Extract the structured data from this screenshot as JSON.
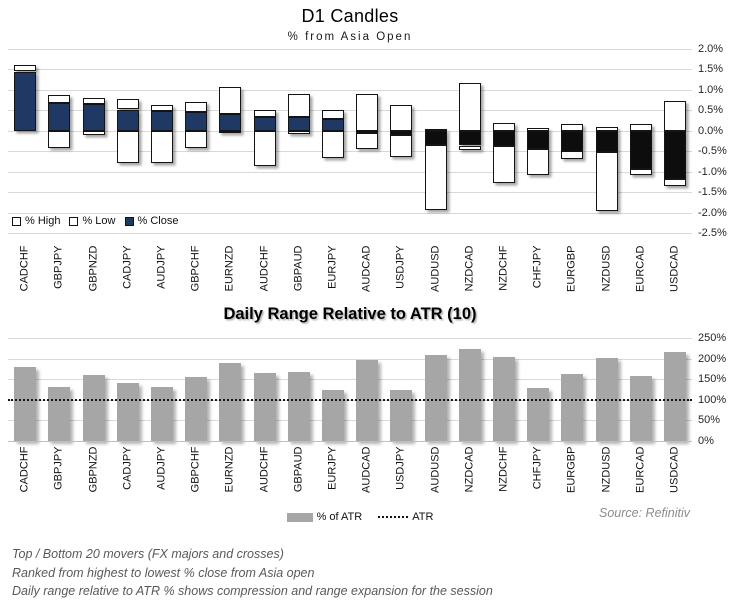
{
  "source": "Source: Refinitiv",
  "footer": {
    "lines": [
      "Top / Bottom 20 movers (FX majors and crosses)",
      "Ranked from highest to lowest % close from Asia open",
      "Daily range relative to ATR % shows compression and range expansion for the session"
    ]
  },
  "colors": {
    "close_up": "#1f3864",
    "close_down": "#0d0d0d",
    "range_fill": "#ffffff",
    "candle_border": "#141414",
    "atr_bar": "#a6a6a6",
    "gridline": "#d9d9d9",
    "axis_text": "#262626"
  },
  "chart_data": [
    {
      "type": "candlestick-range-columns",
      "title": "D1 Candles",
      "subtitle": "% from Asia Open",
      "unit": "percent",
      "ylim": [
        -2.5,
        2.0
      ],
      "y_tick_labels": [
        "2.0%",
        "1.5%",
        "1.0%",
        "0.5%",
        "0.0%",
        "-0.5%",
        "-1.0%",
        "-1.5%",
        "-2.0%",
        "-2.5%"
      ],
      "grid": true,
      "legend_position": "bottom-left",
      "categories": [
        "CADCHF",
        "GBPJPY",
        "GBPNZD",
        "CADJPY",
        "AUDJPY",
        "GBPCHF",
        "EURNZD",
        "AUDCHF",
        "GBPAUD",
        "EURJPY",
        "AUDCAD",
        "USDJPY",
        "AUDUSD",
        "NZDCAD",
        "NZDCHF",
        "CHFJPY",
        "EURGBP",
        "NZDUSD",
        "EURCAD",
        "USDCAD"
      ],
      "series": [
        {
          "name": "% High",
          "values": [
            1.6,
            0.87,
            0.8,
            0.78,
            0.63,
            0.7,
            1.06,
            0.52,
            0.91,
            0.52,
            0.9,
            0.64,
            0.04,
            1.16,
            0.2,
            0.06,
            0.16,
            0.1,
            0.16,
            0.72
          ]
        },
        {
          "name": "% Low",
          "values": [
            -0.02,
            -0.42,
            -0.1,
            -0.8,
            -0.8,
            -0.42,
            -0.05,
            -0.87,
            -0.07,
            -0.66,
            -0.44,
            -0.64,
            -1.95,
            -0.47,
            -1.28,
            -1.08,
            -0.68,
            -1.95,
            -1.08,
            -1.35
          ]
        },
        {
          "name": "% Close",
          "values": [
            1.45,
            0.67,
            0.65,
            0.52,
            0.48,
            0.46,
            0.42,
            0.34,
            0.33,
            0.29,
            -0.05,
            -0.1,
            -0.35,
            -0.36,
            -0.38,
            -0.45,
            -0.5,
            -0.52,
            -0.93,
            -1.18
          ]
        }
      ]
    },
    {
      "type": "bar",
      "title": "Daily Range Relative to ATR (10)",
      "unit": "percent of ATR",
      "ylim": [
        0,
        250
      ],
      "y_tick_labels": [
        "250%",
        "200%",
        "150%",
        "100%",
        "50%",
        "0%"
      ],
      "grid": true,
      "legend_position": "bottom-center",
      "categories": [
        "CADCHF",
        "GBPJPY",
        "GBPNZD",
        "CADJPY",
        "AUDJPY",
        "GBPCHF",
        "EURNZD",
        "AUDCHF",
        "GBPAUD",
        "EURJPY",
        "AUDCAD",
        "USDJPY",
        "AUDUSD",
        "NZDCAD",
        "NZDCHF",
        "CHFJPY",
        "EURGBP",
        "NZDUSD",
        "EURCAD",
        "USDCAD"
      ],
      "series": [
        {
          "name": "% of ATR",
          "values": [
            179,
            130,
            160,
            140,
            132,
            155,
            190,
            166,
            167,
            124,
            197,
            125,
            209,
            223,
            205,
            128,
            163,
            201,
            159,
            217
          ]
        },
        {
          "name": "ATR",
          "type": "reference-line",
          "style": "dotted",
          "value": 100
        }
      ]
    }
  ]
}
